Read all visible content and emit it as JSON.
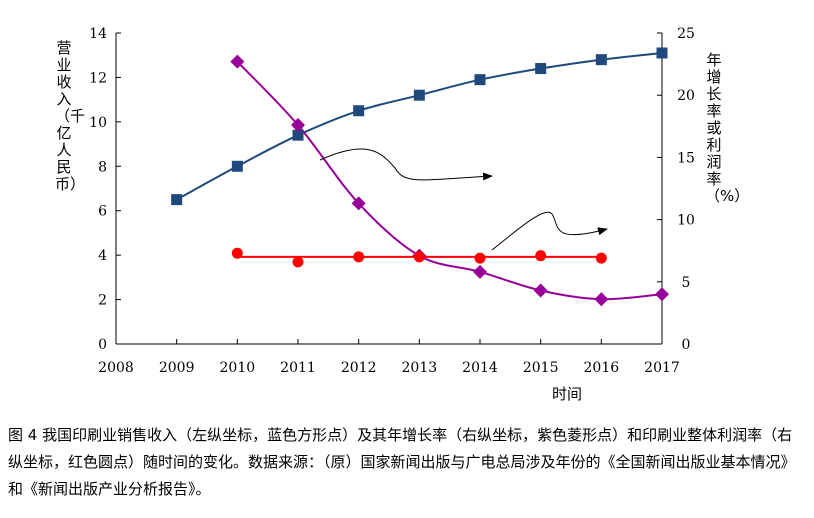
{
  "chart_data": {
    "type": "line",
    "x": [
      2008,
      2009,
      2010,
      2011,
      2012,
      2013,
      2014,
      2015,
      2016,
      2017
    ],
    "xlim": [
      2008,
      2017
    ],
    "ylim_left": [
      0,
      14
    ],
    "ylim_right": [
      0,
      25
    ],
    "left_ticks": [
      0,
      2,
      4,
      6,
      8,
      10,
      12,
      14
    ],
    "right_ticks": [
      0,
      5,
      10,
      15,
      20,
      25
    ],
    "ylabel_left": "营业收入（千亿人民币）",
    "ylabel_right": "年增长率或利润率（%）",
    "xlabel": "时间",
    "series": [
      {
        "name": "营业收入",
        "axis": "left",
        "color": "#1f497d",
        "marker": "square",
        "x": [
          2009,
          2010,
          2011,
          2012,
          2013,
          2014,
          2015,
          2016,
          2017
        ],
        "values": [
          6.5,
          8.0,
          9.4,
          10.5,
          11.2,
          11.9,
          12.4,
          12.8,
          13.1
        ]
      },
      {
        "name": "年增长率",
        "axis": "right",
        "color": "#990099",
        "marker": "diamond",
        "x": [
          2010,
          2011,
          2012,
          2013,
          2014,
          2015,
          2016,
          2017
        ],
        "values": [
          22.7,
          17.6,
          11.3,
          7.1,
          5.8,
          4.3,
          3.6,
          4.0
        ]
      },
      {
        "name": "利润率",
        "axis": "right",
        "color": "#ff0000",
        "marker": "circle",
        "x": [
          2010,
          2011,
          2012,
          2013,
          2014,
          2015,
          2016
        ],
        "values": [
          7.3,
          6.6,
          7.0,
          7.0,
          6.9,
          7.1,
          6.9
        ],
        "trend_value": 7.0
      }
    ]
  },
  "caption": "图 4  我国印刷业销售收入（左纵坐标，蓝色方形点）及其年增长率（右纵坐标，紫色菱形点）和印刷业整体利润率（右纵坐标，红色圆点）随时间的变化。数据来源：（原）国家新闻出版与广电总局涉及年份的《全国新闻出版业基本情况》和《新闻出版产业分析报告》。"
}
